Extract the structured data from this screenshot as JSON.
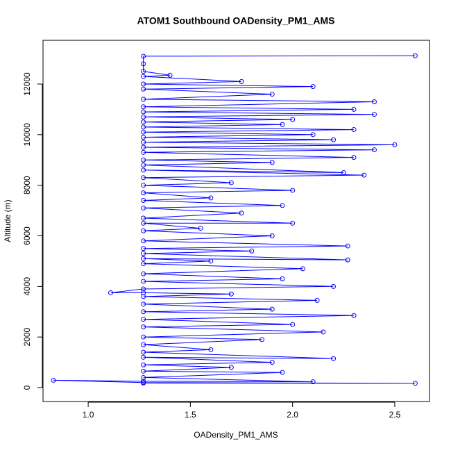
{
  "chart_data": {
    "type": "line",
    "marker": "circle",
    "title": "ATOM1 Southbound OADensity_PM1_AMS",
    "x_label": "OADensity_PM1_AMS",
    "y_label": "Altitude (m)",
    "color": "#0000ff",
    "x": [
      1.27,
      2.6,
      1.27,
      0.83,
      1.27,
      2.1,
      1.27,
      1.95,
      1.27,
      1.7,
      1.27,
      1.9,
      1.27,
      2.2,
      1.27,
      1.6,
      1.27,
      1.85,
      1.27,
      2.15,
      1.27,
      2.0,
      1.27,
      2.3,
      1.27,
      1.9,
      1.27,
      2.12,
      1.27,
      1.7,
      1.27,
      1.11,
      1.27,
      2.2,
      1.27,
      1.95,
      1.27,
      2.05,
      1.27,
      1.6,
      1.27,
      2.27,
      1.27,
      1.8,
      1.27,
      2.27,
      1.27,
      1.9,
      1.27,
      1.55,
      1.27,
      2.0,
      1.27,
      1.75,
      1.27,
      1.95,
      1.27,
      1.6,
      1.27,
      2.0,
      1.27,
      1.7,
      1.27,
      2.35,
      1.27,
      2.25,
      1.27,
      1.9,
      1.27,
      2.3,
      1.27,
      2.4,
      1.27,
      2.5,
      1.27,
      2.2,
      1.27,
      2.1,
      1.27,
      2.3,
      1.27,
      1.95,
      1.27,
      2.0,
      1.27,
      2.4,
      1.27,
      2.3,
      1.27,
      2.4,
      1.27,
      1.9,
      1.27,
      2.1,
      1.27,
      1.75,
      1.27,
      1.4,
      1.27,
      1.27,
      1.27,
      2.6
    ],
    "values": [
      180,
      170,
      200,
      290,
      250,
      230,
      400,
      600,
      650,
      800,
      900,
      1000,
      1200,
      1150,
      1400,
      1500,
      1700,
      1900,
      2000,
      2200,
      2400,
      2500,
      2700,
      2850,
      3000,
      3100,
      3300,
      3450,
      3600,
      3700,
      3750,
      3750,
      3900,
      4000,
      4200,
      4300,
      4500,
      4700,
      4900,
      5000,
      5100,
      5050,
      5300,
      5400,
      5500,
      5600,
      5800,
      6000,
      6200,
      6300,
      6500,
      6500,
      6700,
      6900,
      7100,
      7200,
      7400,
      7500,
      7700,
      7800,
      8000,
      8100,
      8300,
      8400,
      8600,
      8500,
      8800,
      8900,
      9000,
      9100,
      9300,
      9400,
      9500,
      9600,
      9700,
      9800,
      9900,
      10000,
      10100,
      10200,
      10300,
      10400,
      10500,
      10600,
      10700,
      10800,
      10900,
      11000,
      11100,
      11300,
      11400,
      11600,
      11800,
      11900,
      12000,
      12100,
      12300,
      12350,
      12500,
      12800,
      13100,
      13120
    ],
    "xlim": [
      0.779,
      2.67
    ],
    "xticks": [
      {
        "value": 1,
        "label": "1.0"
      },
      {
        "value": 1.5,
        "label": "1.5"
      },
      {
        "value": 2,
        "label": "2.0"
      },
      {
        "value": 2.5,
        "label": "2.5"
      }
    ],
    "ylim": [
      -549,
      13730
    ],
    "yticks": [
      0,
      2000,
      4000,
      6000,
      8000,
      10000,
      12000
    ]
  }
}
